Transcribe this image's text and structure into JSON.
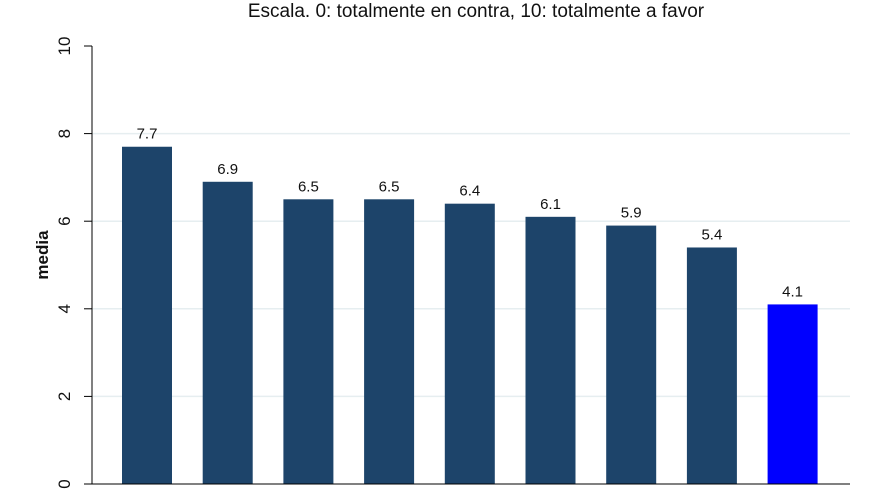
{
  "chart_data": {
    "type": "bar",
    "title": "Escala. 0: totalmente en contra, 10: totalmente a favor",
    "xlabel": "",
    "ylabel": "media",
    "ylim": [
      0,
      10
    ],
    "yticks": [
      "0",
      "2",
      "4",
      "6",
      "8",
      "10"
    ],
    "grid": true,
    "categories": [
      "",
      "",
      "",
      "",
      "",
      "",
      "",
      "",
      ""
    ],
    "values": [
      7.7,
      6.9,
      6.5,
      6.5,
      6.4,
      6.1,
      5.9,
      5.4,
      4.1
    ],
    "labels": [
      "7.7",
      "6.9",
      "6.5",
      "6.5",
      "6.4",
      "6.1",
      "5.9",
      "5.4",
      "4.1"
    ],
    "colors": [
      "#1d446a",
      "#1d446a",
      "#1d446a",
      "#1d446a",
      "#1d446a",
      "#1d446a",
      "#1d446a",
      "#1d446a",
      "#0000ff"
    ]
  }
}
